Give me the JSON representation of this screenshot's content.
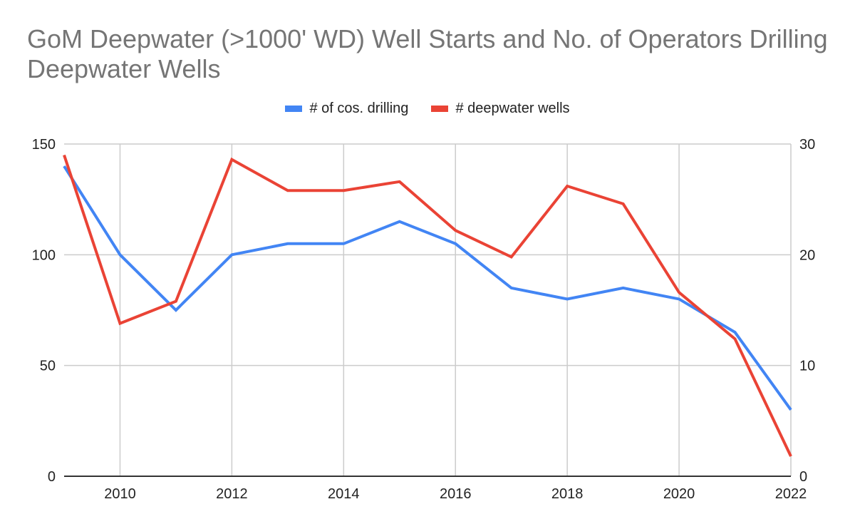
{
  "chart_data": {
    "type": "line",
    "title": "GoM Deepwater (>1000' WD) Well Starts and No. of Operators Drilling Deepwater Wells",
    "xlabel": "",
    "ylabel_left": "",
    "ylabel_right": "",
    "x": [
      2009,
      2010,
      2011,
      2012,
      2013,
      2014,
      2015,
      2016,
      2017,
      2018,
      2019,
      2020,
      2021,
      2022
    ],
    "x_ticks": [
      "2010",
      "2012",
      "2014",
      "2016",
      "2018",
      "2020",
      "2022"
    ],
    "x_tick_values": [
      2010,
      2012,
      2014,
      2016,
      2018,
      2020,
      2022
    ],
    "xlim": [
      2009,
      2022
    ],
    "ylim_left": [
      0,
      150
    ],
    "ylim_right": [
      0,
      30
    ],
    "y_ticks_left": [
      "0",
      "50",
      "100",
      "150"
    ],
    "y_tick_values_left": [
      0,
      50,
      100,
      150
    ],
    "y_ticks_right": [
      "0",
      "10",
      "20",
      "30"
    ],
    "grid": true,
    "legend_position": "top-center",
    "series": [
      {
        "name": "# of cos. drilling",
        "axis": "right",
        "color": "#4285f4",
        "values": [
          28,
          20,
          15,
          20,
          21,
          21,
          23,
          21,
          17,
          16,
          17,
          16,
          13,
          6
        ]
      },
      {
        "name": "# deepwater wells",
        "axis": "left",
        "color": "#ea4335",
        "values": [
          145,
          69,
          79,
          143,
          129,
          129,
          133,
          111,
          99,
          131,
          123,
          83,
          62,
          9
        ]
      }
    ]
  }
}
